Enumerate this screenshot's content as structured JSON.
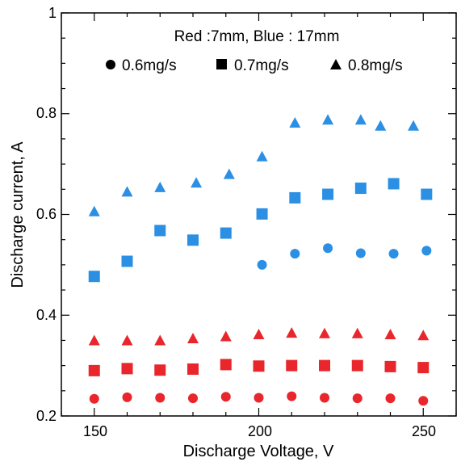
{
  "chart_data": {
    "type": "scatter",
    "title": "",
    "xlabel": "Discharge Voltage, V",
    "ylabel": "Discharge current, A",
    "xlim": [
      140,
      260
    ],
    "ylim": [
      0.2,
      1.0
    ],
    "xticks": [
      150,
      200,
      250
    ],
    "yticks": [
      0.2,
      0.4,
      0.6,
      0.8,
      1.0
    ],
    "xtick_labels": [
      "150",
      "200",
      "250"
    ],
    "ytick_labels": [
      "0.2",
      "0.4",
      "0.6",
      "0.8",
      "1"
    ],
    "grid": false,
    "legend": {
      "placement": "top-center",
      "header": "Red :7mm, Blue : 17mm",
      "entries": [
        {
          "marker": "circle",
          "label": "0.6mg/s"
        },
        {
          "marker": "square",
          "label": "0.7mg/s"
        },
        {
          "marker": "triangle",
          "label": "0.8mg/s"
        }
      ]
    },
    "colors": {
      "red": "#e8262b",
      "blue": "#2b8fe3"
    },
    "series": [
      {
        "color": "red",
        "marker": "circle",
        "x": [
          150,
          160,
          170,
          180,
          190,
          200,
          210,
          220,
          230,
          240,
          250
        ],
        "y": [
          0.234,
          0.237,
          0.236,
          0.235,
          0.238,
          0.236,
          0.239,
          0.236,
          0.235,
          0.235,
          0.23
        ]
      },
      {
        "color": "red",
        "marker": "square",
        "x": [
          150,
          160,
          170,
          180,
          190,
          200,
          210,
          220,
          230,
          240,
          250
        ],
        "y": [
          0.29,
          0.294,
          0.291,
          0.293,
          0.302,
          0.299,
          0.3,
          0.3,
          0.3,
          0.298,
          0.296
        ]
      },
      {
        "color": "red",
        "marker": "triangle",
        "x": [
          150,
          160,
          170,
          180,
          190,
          200,
          210,
          220,
          230,
          240,
          250
        ],
        "y": [
          0.35,
          0.35,
          0.35,
          0.354,
          0.358,
          0.362,
          0.365,
          0.364,
          0.364,
          0.362,
          0.36
        ]
      },
      {
        "color": "blue",
        "marker": "circle",
        "x": [
          201,
          211,
          221,
          231,
          241,
          251
        ],
        "y": [
          0.5,
          0.522,
          0.533,
          0.523,
          0.522,
          0.528
        ]
      },
      {
        "color": "blue",
        "marker": "square",
        "x": [
          150,
          160,
          170,
          180,
          190,
          201,
          211,
          221,
          231,
          241,
          251
        ],
        "y": [
          0.477,
          0.507,
          0.568,
          0.549,
          0.563,
          0.601,
          0.633,
          0.64,
          0.652,
          0.661,
          0.64
        ]
      },
      {
        "color": "blue",
        "marker": "triangle",
        "x": [
          150,
          160,
          170,
          181,
          191,
          201,
          211,
          221,
          231,
          237,
          247
        ],
        "y": [
          0.606,
          0.645,
          0.654,
          0.663,
          0.68,
          0.715,
          0.782,
          0.788,
          0.788,
          0.776,
          0.776
        ]
      }
    ]
  }
}
